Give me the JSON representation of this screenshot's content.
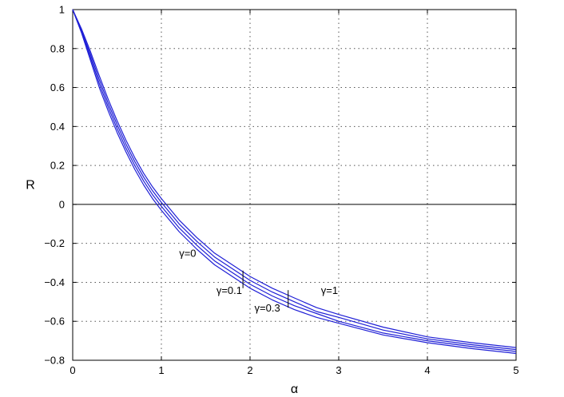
{
  "chart_data": {
    "type": "line",
    "xlabel": "α",
    "ylabel": "R",
    "xlim": [
      0,
      5
    ],
    "ylim": [
      -0.8,
      1
    ],
    "grid": true,
    "x_ticks": [
      "0",
      "1",
      "2",
      "3",
      "4",
      "5"
    ],
    "y_ticks": [
      "−0.8",
      "−0.6",
      "−0.4",
      "−0.2",
      "0",
      "0.2",
      "0.4",
      "0.6",
      "0.8",
      "1"
    ],
    "series_color": "#1f1fd6",
    "series": [
      {
        "x": [
          0,
          0.1,
          0.2,
          0.3,
          0.4,
          0.5,
          0.6,
          0.7,
          0.8,
          0.9,
          1.0,
          1.2,
          1.4,
          1.6,
          1.8,
          2.0,
          2.25,
          2.5,
          2.75,
          3.0,
          3.5,
          4.0,
          4.5,
          5.0
        ],
        "y": [
          1,
          0.88,
          0.74,
          0.6,
          0.48,
          0.37,
          0.27,
          0.18,
          0.1,
          0.03,
          -0.03,
          -0.14,
          -0.23,
          -0.31,
          -0.37,
          -0.43,
          -0.49,
          -0.54,
          -0.58,
          -0.61,
          -0.67,
          -0.71,
          -0.74,
          -0.765
        ]
      },
      {
        "x": [
          0,
          0.1,
          0.2,
          0.3,
          0.4,
          0.5,
          0.6,
          0.7,
          0.8,
          0.9,
          1.0,
          1.2,
          1.4,
          1.6,
          1.8,
          2.0,
          2.25,
          2.5,
          2.75,
          3.0,
          3.5,
          4.0,
          4.5,
          5.0
        ],
        "y": [
          1,
          0.885,
          0.755,
          0.62,
          0.5,
          0.39,
          0.29,
          0.2,
          0.12,
          0.05,
          -0.01,
          -0.12,
          -0.21,
          -0.29,
          -0.35,
          -0.41,
          -0.47,
          -0.52,
          -0.56,
          -0.6,
          -0.66,
          -0.7,
          -0.73,
          -0.755
        ]
      },
      {
        "x": [
          0,
          0.1,
          0.2,
          0.3,
          0.4,
          0.5,
          0.6,
          0.7,
          0.8,
          0.9,
          1.0,
          1.2,
          1.4,
          1.6,
          1.8,
          2.0,
          2.25,
          2.5,
          2.75,
          3.0,
          3.5,
          4.0,
          4.5,
          5.0
        ],
        "y": [
          1,
          0.89,
          0.77,
          0.64,
          0.52,
          0.41,
          0.31,
          0.22,
          0.14,
          0.07,
          0.01,
          -0.1,
          -0.19,
          -0.27,
          -0.33,
          -0.39,
          -0.45,
          -0.5,
          -0.55,
          -0.58,
          -0.645,
          -0.69,
          -0.72,
          -0.745
        ]
      },
      {
        "x": [
          0,
          0.1,
          0.2,
          0.3,
          0.4,
          0.5,
          0.6,
          0.7,
          0.8,
          0.9,
          1.0,
          1.2,
          1.4,
          1.6,
          1.8,
          2.0,
          2.25,
          2.5,
          2.75,
          3.0,
          3.5,
          4.0,
          4.5,
          5.0
        ],
        "y": [
          1,
          0.9,
          0.785,
          0.66,
          0.54,
          0.43,
          0.33,
          0.24,
          0.16,
          0.09,
          0.03,
          -0.08,
          -0.17,
          -0.25,
          -0.31,
          -0.37,
          -0.43,
          -0.48,
          -0.53,
          -0.565,
          -0.63,
          -0.68,
          -0.71,
          -0.735
        ]
      }
    ],
    "annotations": [
      {
        "text": "γ=0",
        "x": 1.2,
        "y": -0.27,
        "pointer": null
      },
      {
        "text": "γ=0.1",
        "x": 1.62,
        "y": -0.46,
        "pointer": {
          "x": 1.92,
          "y1": -0.34,
          "y2": -0.43
        }
      },
      {
        "text": "γ=0.3",
        "x": 2.05,
        "y": -0.55,
        "pointer": {
          "x": 2.43,
          "y1": -0.44,
          "y2": -0.53
        }
      },
      {
        "text": "γ=1",
        "x": 2.8,
        "y": -0.46,
        "pointer": null
      }
    ]
  }
}
